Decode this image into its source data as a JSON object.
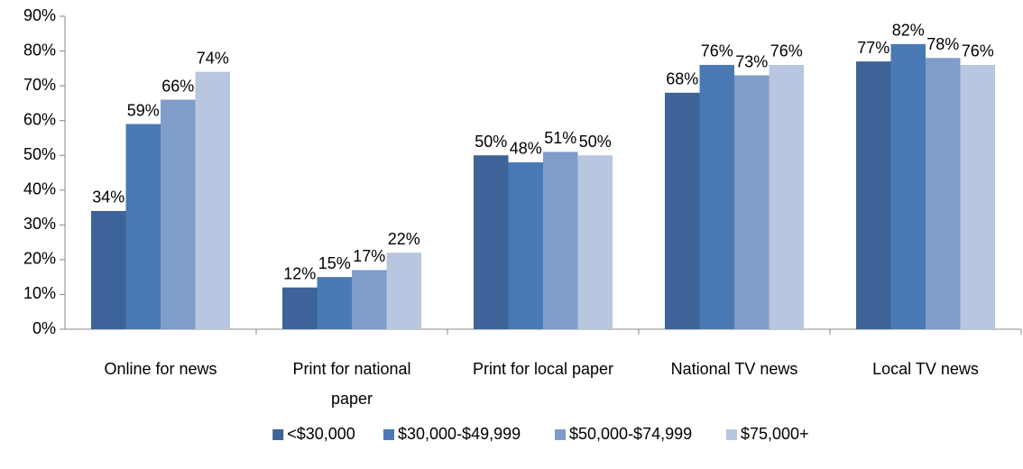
{
  "chart_data": {
    "type": "bar",
    "categories": [
      "Online for news",
      "Print for national paper",
      "Print for local paper",
      "National TV news",
      "Local TV news"
    ],
    "series": [
      {
        "name": "<$30,000",
        "color": "#3d6399",
        "values": [
          34,
          12,
          50,
          68,
          77
        ],
        "value_labels": [
          "34%",
          "12%",
          "50%",
          "68%",
          "77%"
        ]
      },
      {
        "name": "$30,000-$49,999",
        "color": "#4a7ab5",
        "values": [
          59,
          15,
          48,
          76,
          82
        ],
        "value_labels": [
          "59%",
          "15%",
          "48%",
          "76%",
          "82%"
        ]
      },
      {
        "name": "$50,000-$74,999",
        "color": "#7f9dc9",
        "values": [
          66,
          17,
          51,
          73,
          78
        ],
        "value_labels": [
          "66%",
          "17%",
          "51%",
          "73%",
          "78%"
        ]
      },
      {
        "name": "$75,000+",
        "color": "#b8c6e0",
        "values": [
          74,
          22,
          50,
          76,
          76
        ],
        "value_labels": [
          "74%",
          "22%",
          "50%",
          "76%",
          "76%"
        ]
      }
    ],
    "ylim": [
      0,
      90
    ],
    "yticks": [
      {
        "value": 0,
        "label": "0%"
      },
      {
        "value": 10,
        "label": "10%"
      },
      {
        "value": 20,
        "label": "20%"
      },
      {
        "value": 30,
        "label": "30%"
      },
      {
        "value": 40,
        "label": "40%"
      },
      {
        "value": 50,
        "label": "50%"
      },
      {
        "value": 60,
        "label": "60%"
      },
      {
        "value": 70,
        "label": "70%"
      },
      {
        "value": 80,
        "label": "80%"
      },
      {
        "value": 90,
        "label": "90%"
      }
    ],
    "grid": false,
    "legend": "bottom"
  }
}
